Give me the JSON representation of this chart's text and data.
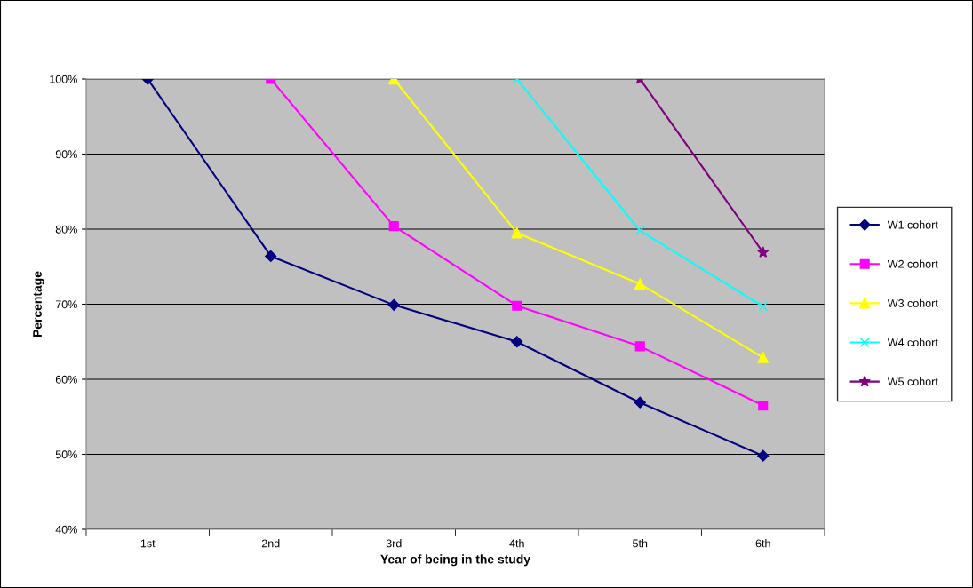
{
  "chart_data": {
    "type": "line",
    "xlabel": "Year of being in the study",
    "ylabel": "Percentage",
    "categories": [
      "1st",
      "2nd",
      "3rd",
      "4th",
      "5th",
      "6th"
    ],
    "series": [
      {
        "name": "W1 cohort",
        "color": "#000080",
        "marker": "diamond",
        "values": [
          100,
          76.4,
          69.9,
          65.0,
          56.9,
          49.8
        ]
      },
      {
        "name": "W2 cohort",
        "color": "#ff00ff",
        "marker": "square",
        "values": [
          null,
          100,
          80.4,
          69.8,
          64.4,
          56.5
        ]
      },
      {
        "name": "W3 cohort",
        "color": "#ffff00",
        "marker": "triangle",
        "values": [
          null,
          null,
          100,
          79.5,
          72.7,
          62.9
        ]
      },
      {
        "name": "W4 cohort",
        "color": "#00ffff",
        "marker": "cross",
        "values": [
          null,
          null,
          null,
          100,
          79.8,
          69.7
        ]
      },
      {
        "name": "W5 cohort",
        "color": "#800080",
        "marker": "star",
        "values": [
          null,
          null,
          null,
          null,
          100,
          76.9
        ]
      }
    ],
    "ylim": [
      40,
      100
    ],
    "yticks": [
      {
        "value": 40,
        "label": "40%"
      },
      {
        "value": 50,
        "label": "50%"
      },
      {
        "value": 60,
        "label": "60%"
      },
      {
        "value": 70,
        "label": "70%"
      },
      {
        "value": 80,
        "label": "80%"
      },
      {
        "value": 90,
        "label": "90%"
      },
      {
        "value": 100,
        "label": "100%"
      }
    ],
    "grid": "y",
    "legend": "right",
    "line_style": "solid"
  }
}
